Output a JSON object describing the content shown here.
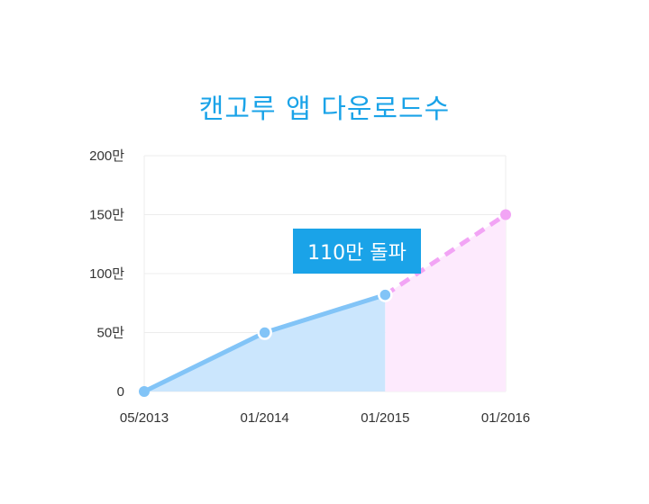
{
  "chart_data": {
    "type": "area",
    "title": "캔고루 앱 다운로드수",
    "xlabel": "",
    "ylabel": "",
    "categories": [
      "05/2013",
      "01/2014",
      "01/2015",
      "01/2016"
    ],
    "y_ticks": [
      "0",
      "50만",
      "100만",
      "150만",
      "200만"
    ],
    "ylim": [
      0,
      200
    ],
    "series": [
      {
        "values": [
          0,
          50,
          82,
          null
        ],
        "color": "#82c4f7",
        "fill": "#cbe6fd"
      },
      {
        "values": [
          null,
          null,
          82,
          150
        ],
        "color": "#f2a4f5",
        "fill": "#fdeafd",
        "style": "dashed"
      }
    ],
    "annotation": "110만 돌파",
    "grid": true,
    "colors": {
      "title": "#1aa3e8",
      "badge": "#1aa3e8"
    }
  }
}
